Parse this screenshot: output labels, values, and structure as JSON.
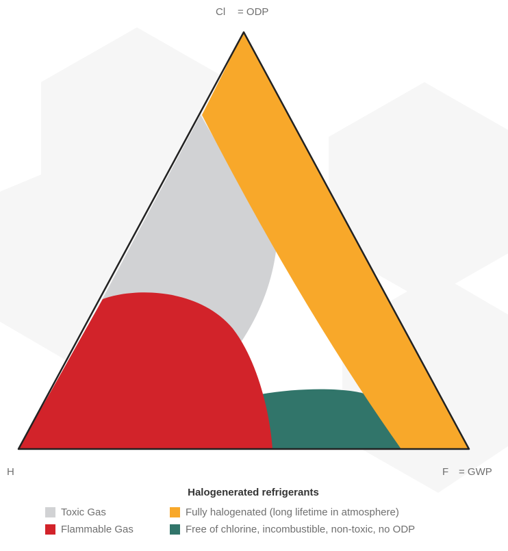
{
  "vertices": {
    "top": {
      "element": "Cl",
      "meaning": "= ODP"
    },
    "left": {
      "element": "H"
    },
    "right": {
      "element": "F",
      "meaning": "= GWP"
    }
  },
  "legend": {
    "title": "Halogenerated refrigerants",
    "items": [
      {
        "label": "Toxic Gas",
        "color": "#d1d2d4"
      },
      {
        "label": "Fully halogenated (long lifetime in atmosphere)",
        "color": "#f8a82a"
      },
      {
        "label": "Flammable Gas",
        "color": "#d2232a"
      },
      {
        "label": "Free of chlorine, incombustible, non-toxic, no ODP",
        "color": "#31756a"
      }
    ]
  }
}
